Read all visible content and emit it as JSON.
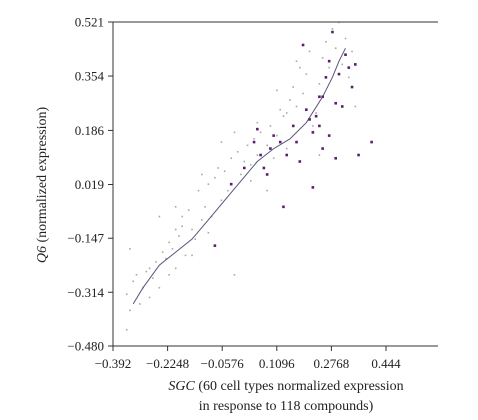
{
  "chart_data": {
    "type": "scatter",
    "title": "",
    "xlabel_prefix": "SGC",
    "xlabel_line1_rest": " (60 cell types normalized expression",
    "xlabel_line2": "in response to 118 compounds)",
    "ylabel_prefix": "Q6",
    "ylabel_rest": " (normalized expression)",
    "xlim": [
      -0.392,
      0.48
    ],
    "ylim": [
      -0.48,
      0.521
    ],
    "x_ticks": [
      -0.392,
      -0.2248,
      -0.0576,
      0.1096,
      0.2768,
      0.444
    ],
    "x_tick_labels": [
      "−0.392",
      "−0.2248",
      "−0.0576",
      "0.1096",
      "0.2768",
      "0.444"
    ],
    "y_ticks": [
      0.521,
      0.354,
      0.186,
      0.019,
      -0.147,
      -0.314,
      -0.48
    ],
    "y_tick_labels": [
      "0.521",
      "0.354",
      "0.186",
      "0.019",
      "−0.147",
      "−0.314",
      "−0.480"
    ],
    "grid": false,
    "colors": {
      "highlight": "#5a1e6e",
      "background_points": "#a8a8a8",
      "fit_line": "#555577"
    },
    "series": [
      {
        "role": "background points",
        "points": [
          [
            -0.35,
            -0.32
          ],
          [
            -0.34,
            -0.37
          ],
          [
            -0.33,
            -0.28
          ],
          [
            -0.32,
            -0.26
          ],
          [
            -0.3,
            -0.3
          ],
          [
            -0.29,
            -0.25
          ],
          [
            -0.28,
            -0.24
          ],
          [
            -0.27,
            -0.27
          ],
          [
            -0.26,
            -0.22
          ],
          [
            -0.25,
            -0.3
          ],
          [
            -0.24,
            -0.19
          ],
          [
            -0.23,
            -0.21
          ],
          [
            -0.22,
            -0.16
          ],
          [
            -0.21,
            -0.18
          ],
          [
            -0.2,
            -0.24
          ],
          [
            -0.2,
            -0.12
          ],
          [
            -0.19,
            -0.14
          ],
          [
            -0.18,
            -0.08
          ],
          [
            -0.18,
            -0.11
          ],
          [
            -0.17,
            -0.2
          ],
          [
            -0.16,
            -0.06
          ],
          [
            -0.15,
            -0.12
          ],
          [
            -0.14,
            -0.15
          ],
          [
            -0.13,
            0.0
          ],
          [
            -0.12,
            -0.09
          ],
          [
            -0.11,
            -0.05
          ],
          [
            -0.1,
            0.02
          ],
          [
            -0.09,
            -0.08
          ],
          [
            -0.08,
            0.04
          ],
          [
            -0.07,
            0.07
          ],
          [
            -0.06,
            -0.03
          ],
          [
            -0.05,
            0.06
          ],
          [
            -0.04,
            0.0
          ],
          [
            -0.03,
            0.1
          ],
          [
            -0.02,
            -0.26
          ],
          [
            -0.01,
            0.12
          ],
          [
            0.0,
            0.05
          ],
          [
            0.01,
            0.09
          ],
          [
            0.02,
            0.14
          ],
          [
            0.03,
            0.08
          ],
          [
            0.04,
            0.16
          ],
          [
            0.05,
            0.11
          ],
          [
            0.06,
            0.18
          ],
          [
            0.07,
            0.07
          ],
          [
            0.08,
            0.14
          ],
          [
            0.09,
            0.2
          ],
          [
            0.1,
            0.1
          ],
          [
            0.11,
            0.17
          ],
          [
            0.12,
            0.25
          ],
          [
            0.13,
            0.23
          ],
          [
            0.14,
            0.13
          ],
          [
            0.15,
            0.28
          ],
          [
            0.16,
            0.32
          ],
          [
            0.17,
            0.26
          ],
          [
            0.18,
            0.38
          ],
          [
            0.19,
            0.3
          ],
          [
            0.2,
            0.36
          ],
          [
            0.21,
            0.43
          ],
          [
            0.22,
            0.2
          ],
          [
            0.23,
            0.24
          ],
          [
            0.24,
            0.33
          ],
          [
            0.25,
            0.41
          ],
          [
            0.26,
            0.46
          ],
          [
            0.27,
            0.38
          ],
          [
            0.28,
            0.5
          ],
          [
            0.29,
            0.44
          ],
          [
            0.3,
            0.52
          ],
          [
            0.31,
            0.39
          ],
          [
            0.32,
            0.47
          ],
          [
            0.33,
            0.35
          ],
          [
            0.34,
            0.43
          ],
          [
            0.35,
            0.26
          ],
          [
            -0.31,
            -0.35
          ],
          [
            -0.28,
            -0.33
          ],
          [
            -0.22,
            -0.26
          ],
          [
            -0.15,
            -0.2
          ],
          [
            -0.1,
            -0.13
          ],
          [
            -0.06,
            0.15
          ],
          [
            -0.02,
            0.18
          ],
          [
            0.03,
            0.03
          ],
          [
            0.08,
            0.0
          ],
          [
            0.14,
            0.24
          ],
          [
            0.19,
            0.45
          ],
          [
            0.24,
            0.11
          ],
          [
            -0.35,
            -0.43
          ],
          [
            -0.34,
            -0.18
          ],
          [
            -0.25,
            -0.08
          ],
          [
            -0.2,
            -0.05
          ],
          [
            -0.12,
            0.05
          ],
          [
            0.05,
            0.21
          ],
          [
            0.11,
            0.31
          ],
          [
            0.17,
            0.4
          ]
        ]
      },
      {
        "role": "highlighted points",
        "points": [
          [
            -0.08,
            -0.17
          ],
          [
            -0.03,
            0.02
          ],
          [
            0.01,
            0.07
          ],
          [
            0.04,
            0.15
          ],
          [
            0.05,
            0.19
          ],
          [
            0.06,
            0.11
          ],
          [
            0.07,
            0.07
          ],
          [
            0.08,
            0.05
          ],
          [
            0.09,
            0.13
          ],
          [
            0.1,
            0.17
          ],
          [
            0.12,
            0.15
          ],
          [
            0.13,
            -0.05
          ],
          [
            0.14,
            0.11
          ],
          [
            0.16,
            0.2
          ],
          [
            0.17,
            0.15
          ],
          [
            0.18,
            0.09
          ],
          [
            0.19,
            0.45
          ],
          [
            0.2,
            0.25
          ],
          [
            0.21,
            0.22
          ],
          [
            0.22,
            0.18
          ],
          [
            0.23,
            0.23
          ],
          [
            0.24,
            0.2
          ],
          [
            0.25,
            0.13
          ],
          [
            0.25,
            0.29
          ],
          [
            0.26,
            0.35
          ],
          [
            0.27,
            0.4
          ],
          [
            0.27,
            0.17
          ],
          [
            0.28,
            0.49
          ],
          [
            0.29,
            0.27
          ],
          [
            0.3,
            0.36
          ],
          [
            0.31,
            0.26
          ],
          [
            0.32,
            0.42
          ],
          [
            0.33,
            0.38
          ],
          [
            0.34,
            0.32
          ],
          [
            0.35,
            0.39
          ],
          [
            0.36,
            0.11
          ],
          [
            0.4,
            0.15
          ],
          [
            0.22,
            0.01
          ],
          [
            0.29,
            0.1
          ],
          [
            0.24,
            0.29
          ]
        ]
      },
      {
        "role": "fit line",
        "points": [
          [
            -0.33,
            -0.35
          ],
          [
            -0.3,
            -0.3
          ],
          [
            -0.25,
            -0.23
          ],
          [
            -0.2,
            -0.19
          ],
          [
            -0.15,
            -0.15
          ],
          [
            -0.1,
            -0.09
          ],
          [
            -0.05,
            -0.03
          ],
          [
            0.0,
            0.03
          ],
          [
            0.05,
            0.09
          ],
          [
            0.1,
            0.13
          ],
          [
            0.15,
            0.16
          ],
          [
            0.2,
            0.21
          ],
          [
            0.25,
            0.29
          ],
          [
            0.28,
            0.35
          ],
          [
            0.3,
            0.4
          ],
          [
            0.32,
            0.44
          ]
        ]
      }
    ]
  }
}
